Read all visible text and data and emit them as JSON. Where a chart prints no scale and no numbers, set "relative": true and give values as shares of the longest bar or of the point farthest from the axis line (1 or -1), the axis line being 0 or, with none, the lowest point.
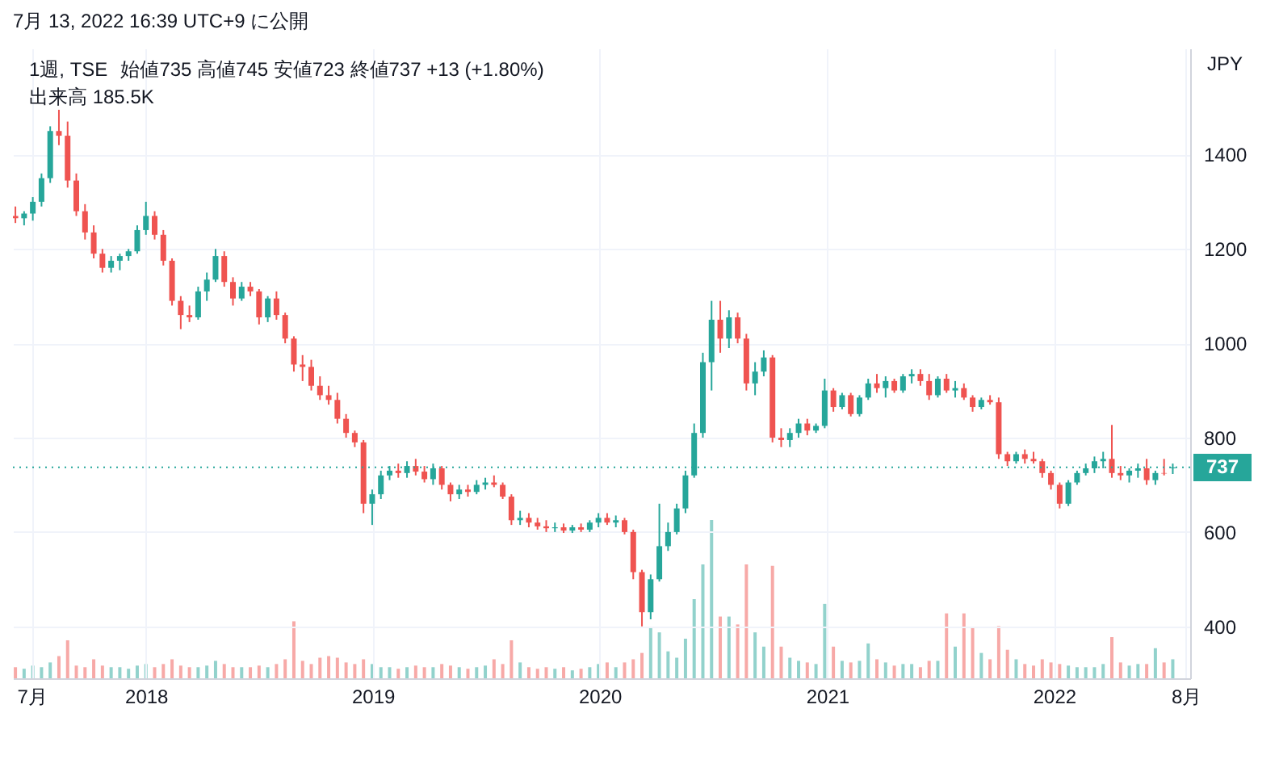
{
  "chart_data": [
    {
      "type": "candlestick",
      "title": "1週, TSE",
      "subtitle": "7月 13, 2022 16:39 UTC+9 に公開",
      "ylabel": "JPY",
      "annotations": [
        "始値735 高値745 安値723 終値737 +13 (+1.80%)",
        "出来高 185.5K"
      ],
      "xlim": [
        "2017-06-01",
        "2022-08-08"
      ],
      "xticks": [
        {
          "value": "2017-07-01",
          "label": "7月"
        },
        {
          "value": "2018-01-01",
          "label": "2018"
        },
        {
          "value": "2019-01-01",
          "label": "2019"
        },
        {
          "value": "2020-01-01",
          "label": "2020"
        },
        {
          "value": "2021-01-01",
          "label": "2021"
        },
        {
          "value": "2022-01-01",
          "label": "2022"
        },
        {
          "value": "2022-08-01",
          "label": "8月"
        }
      ],
      "ylim": [
        290,
        1625
      ],
      "yticks": [
        400,
        600,
        800,
        1000,
        1200,
        1400
      ],
      "grid": true,
      "ref_lines": [
        {
          "axis": "y",
          "value": 737,
          "label": "737",
          "color": "#26a69a",
          "line_style": "dotted"
        }
      ],
      "x": [
        "2017-06-05",
        "2017-06-19",
        "2017-07-03",
        "2017-07-17",
        "2017-07-31",
        "2017-08-14",
        "2017-08-28",
        "2017-09-11",
        "2017-09-25",
        "2017-10-09",
        "2017-10-23",
        "2017-11-06",
        "2017-11-20",
        "2017-12-04",
        "2017-12-18",
        "2018-01-01",
        "2018-01-15",
        "2018-01-29",
        "2018-02-12",
        "2018-02-26",
        "2018-03-12",
        "2018-03-26",
        "2018-04-09",
        "2018-04-23",
        "2018-05-07",
        "2018-05-21",
        "2018-06-04",
        "2018-06-18",
        "2018-07-02",
        "2018-07-16",
        "2018-07-30",
        "2018-08-13",
        "2018-08-27",
        "2018-09-10",
        "2018-09-24",
        "2018-10-08",
        "2018-10-22",
        "2018-11-05",
        "2018-11-19",
        "2018-12-03",
        "2018-12-17",
        "2018-12-31",
        "2019-01-14",
        "2019-01-28",
        "2019-02-11",
        "2019-02-25",
        "2019-03-11",
        "2019-03-25",
        "2019-04-08",
        "2019-04-22",
        "2019-05-06",
        "2019-05-20",
        "2019-06-03",
        "2019-06-17",
        "2019-07-01",
        "2019-07-15",
        "2019-07-29",
        "2019-08-12",
        "2019-08-26",
        "2019-09-09",
        "2019-09-23",
        "2019-10-07",
        "2019-10-21",
        "2019-11-04",
        "2019-11-18",
        "2019-12-02",
        "2019-12-16",
        "2019-12-30",
        "2020-01-13",
        "2020-01-27",
        "2020-02-10",
        "2020-02-24",
        "2020-03-09",
        "2020-03-23",
        "2020-04-06",
        "2020-04-20",
        "2020-05-04",
        "2020-05-18",
        "2020-06-01",
        "2020-06-15",
        "2020-06-29",
        "2020-07-13",
        "2020-07-27",
        "2020-08-10",
        "2020-08-24",
        "2020-09-07",
        "2020-09-21",
        "2020-10-05",
        "2020-10-19",
        "2020-11-02",
        "2020-11-16",
        "2020-11-30",
        "2020-12-14",
        "2020-12-28",
        "2021-01-11",
        "2021-01-25",
        "2021-02-08",
        "2021-02-22",
        "2021-03-08",
        "2021-03-22",
        "2021-04-05",
        "2021-04-19",
        "2021-05-03",
        "2021-05-17",
        "2021-05-31",
        "2021-06-14",
        "2021-06-28",
        "2021-07-12",
        "2021-07-26",
        "2021-08-09",
        "2021-08-23",
        "2021-09-06",
        "2021-09-20",
        "2021-10-04",
        "2021-10-18",
        "2021-11-01",
        "2021-11-15",
        "2021-11-29",
        "2021-12-13",
        "2021-12-27",
        "2022-01-10",
        "2022-01-24",
        "2022-02-07",
        "2022-02-21",
        "2022-03-07",
        "2022-03-21",
        "2022-04-04",
        "2022-04-18",
        "2022-05-02",
        "2022-05-16",
        "2022-05-30",
        "2022-06-13",
        "2022-06-27",
        "2022-07-11"
      ],
      "series": [
        {
          "ohlc": [
            [
              1270,
              1290,
              1255,
              1265
            ],
            [
              1265,
              1280,
              1250,
              1275
            ],
            [
              1275,
              1310,
              1260,
              1300
            ],
            [
              1300,
              1360,
              1290,
              1350
            ],
            [
              1350,
              1460,
              1340,
              1450
            ],
            [
              1450,
              1495,
              1420,
              1440
            ],
            [
              1440,
              1470,
              1330,
              1345
            ],
            [
              1345,
              1360,
              1270,
              1280
            ],
            [
              1280,
              1295,
              1220,
              1235
            ],
            [
              1235,
              1250,
              1180,
              1190
            ],
            [
              1190,
              1200,
              1150,
              1160
            ],
            [
              1160,
              1185,
              1150,
              1175
            ],
            [
              1175,
              1190,
              1155,
              1185
            ],
            [
              1185,
              1200,
              1175,
              1195
            ],
            [
              1195,
              1250,
              1190,
              1240
            ],
            [
              1240,
              1300,
              1230,
              1270
            ],
            [
              1270,
              1280,
              1220,
              1230
            ],
            [
              1230,
              1240,
              1165,
              1175
            ],
            [
              1175,
              1180,
              1080,
              1090
            ],
            [
              1090,
              1100,
              1030,
              1060
            ],
            [
              1060,
              1080,
              1045,
              1055
            ],
            [
              1055,
              1120,
              1050,
              1110
            ],
            [
              1110,
              1150,
              1090,
              1135
            ],
            [
              1135,
              1200,
              1130,
              1185
            ],
            [
              1185,
              1195,
              1120,
              1130
            ],
            [
              1130,
              1140,
              1080,
              1095
            ],
            [
              1095,
              1130,
              1090,
              1120
            ],
            [
              1120,
              1130,
              1100,
              1110
            ],
            [
              1110,
              1115,
              1040,
              1055
            ],
            [
              1055,
              1100,
              1045,
              1095
            ],
            [
              1095,
              1110,
              1050,
              1060
            ],
            [
              1060,
              1065,
              1000,
              1010
            ],
            [
              1010,
              1015,
              940,
              955
            ],
            [
              955,
              975,
              920,
              950
            ],
            [
              950,
              965,
              900,
              910
            ],
            [
              910,
              930,
              880,
              890
            ],
            [
              890,
              910,
              870,
              880
            ],
            [
              880,
              895,
              830,
              840
            ],
            [
              840,
              850,
              800,
              810
            ],
            [
              810,
              815,
              780,
              790
            ],
            [
              790,
              795,
              640,
              660
            ],
            [
              660,
              690,
              615,
              680
            ],
            [
              680,
              730,
              670,
              720
            ],
            [
              720,
              740,
              710,
              730
            ],
            [
              730,
              745,
              715,
              725
            ],
            [
              725,
              750,
              715,
              740
            ],
            [
              740,
              755,
              720,
              728
            ],
            [
              728,
              740,
              705,
              712
            ],
            [
              712,
              745,
              700,
              735
            ],
            [
              735,
              740,
              690,
              700
            ],
            [
              700,
              705,
              665,
              680
            ],
            [
              680,
              700,
              670,
              690
            ],
            [
              690,
              700,
              675,
              685
            ],
            [
              685,
              710,
              680,
              700
            ],
            [
              700,
              715,
              690,
              705
            ],
            [
              705,
              720,
              695,
              700
            ],
            [
              700,
              705,
              670,
              675
            ],
            [
              675,
              680,
              615,
              625
            ],
            [
              625,
              645,
              615,
              630
            ],
            [
              630,
              640,
              610,
              620
            ],
            [
              620,
              630,
              605,
              612
            ],
            [
              612,
              625,
              600,
              608
            ],
            [
              608,
              620,
              600,
              610
            ],
            [
              610,
              618,
              598,
              603
            ],
            [
              603,
              615,
              598,
              610
            ],
            [
              610,
              618,
              600,
              605
            ],
            [
              605,
              625,
              600,
              620
            ],
            [
              620,
              640,
              610,
              630
            ],
            [
              630,
              640,
              615,
              620
            ],
            [
              620,
              635,
              610,
              625
            ],
            [
              625,
              630,
              595,
              600
            ],
            [
              600,
              605,
              500,
              515
            ],
            [
              515,
              520,
              400,
              430
            ],
            [
              430,
              510,
              415,
              500
            ],
            [
              500,
              660,
              495,
              570
            ],
            [
              570,
              620,
              560,
              600
            ],
            [
              600,
              660,
              595,
              650
            ],
            [
              650,
              730,
              640,
              720
            ],
            [
              720,
              830,
              715,
              810
            ],
            [
              810,
              980,
              800,
              960
            ],
            [
              960,
              1090,
              900,
              1050
            ],
            [
              1050,
              1090,
              980,
              1010
            ],
            [
              1010,
              1070,
              990,
              1055
            ],
            [
              1055,
              1065,
              1000,
              1010
            ],
            [
              1010,
              1020,
              900,
              915
            ],
            [
              915,
              960,
              890,
              940
            ],
            [
              940,
              985,
              930,
              970
            ],
            [
              970,
              975,
              790,
              800
            ],
            [
              800,
              820,
              780,
              795
            ],
            [
              795,
              820,
              780,
              810
            ],
            [
              810,
              840,
              800,
              830
            ],
            [
              830,
              840,
              805,
              815
            ],
            [
              815,
              830,
              810,
              825
            ],
            [
              825,
              925,
              820,
              900
            ],
            [
              900,
              905,
              855,
              865
            ],
            [
              865,
              895,
              860,
              890
            ],
            [
              890,
              895,
              845,
              850
            ],
            [
              850,
              890,
              845,
              885
            ],
            [
              885,
              925,
              880,
              915
            ],
            [
              915,
              935,
              895,
              905
            ],
            [
              905,
              930,
              885,
              920
            ],
            [
              920,
              925,
              895,
              900
            ],
            [
              900,
              935,
              895,
              930
            ],
            [
              930,
              945,
              915,
              935
            ],
            [
              935,
              945,
              910,
              920
            ],
            [
              920,
              935,
              880,
              890
            ],
            [
              890,
              930,
              885,
              925
            ],
            [
              925,
              935,
              895,
              900
            ],
            [
              900,
              920,
              885,
              905
            ],
            [
              905,
              915,
              880,
              885
            ],
            [
              885,
              890,
              855,
              865
            ],
            [
              865,
              885,
              860,
              880
            ],
            [
              880,
              890,
              870,
              875
            ],
            [
              875,
              885,
              755,
              765
            ],
            [
              765,
              770,
              740,
              750
            ],
            [
              750,
              770,
              745,
              765
            ],
            [
              765,
              775,
              745,
              755
            ],
            [
              755,
              770,
              745,
              750
            ],
            [
              750,
              755,
              715,
              725
            ],
            [
              725,
              730,
              690,
              700
            ],
            [
              700,
              705,
              650,
              660
            ],
            [
              660,
              710,
              655,
              705
            ],
            [
              705,
              730,
              700,
              725
            ],
            [
              725,
              745,
              720,
              735
            ],
            [
              735,
              760,
              725,
              750
            ],
            [
              750,
              770,
              735,
              755
            ],
            [
              755,
              827,
              715,
              725
            ],
            [
              725,
              740,
              710,
              720
            ],
            [
              720,
              735,
              705,
              730
            ],
            [
              730,
              745,
              715,
              735
            ],
            [
              735,
              755,
              700,
              710
            ],
            [
              710,
              730,
              700,
              725
            ],
            [
              725,
              755,
              720,
              724
            ],
            [
              735,
              745,
              723,
              737
            ]
          ],
          "colors": [
            "#ef5350",
            "#26a69a",
            "#26a69a",
            "#26a69a",
            "#26a69a",
            "#ef5350",
            "#ef5350",
            "#ef5350",
            "#ef5350",
            "#ef5350",
            "#ef5350",
            "#26a69a",
            "#26a69a",
            "#26a69a",
            "#26a69a",
            "#26a69a",
            "#ef5350",
            "#ef5350",
            "#ef5350",
            "#ef5350",
            "#ef5350",
            "#26a69a",
            "#26a69a",
            "#26a69a",
            "#ef5350",
            "#ef5350",
            "#26a69a",
            "#ef5350",
            "#ef5350",
            "#26a69a",
            "#ef5350",
            "#ef5350",
            "#ef5350",
            "#ef5350",
            "#ef5350",
            "#ef5350",
            "#ef5350",
            "#ef5350",
            "#ef5350",
            "#ef5350",
            "#ef5350",
            "#26a69a",
            "#26a69a",
            "#26a69a",
            "#ef5350",
            "#26a69a",
            "#ef5350",
            "#ef5350",
            "#26a69a",
            "#ef5350",
            "#ef5350",
            "#26a69a",
            "#ef5350",
            "#26a69a",
            "#26a69a",
            "#ef5350",
            "#ef5350",
            "#ef5350",
            "#26a69a",
            "#ef5350",
            "#ef5350",
            "#ef5350",
            "#26a69a",
            "#ef5350",
            "#26a69a",
            "#ef5350",
            "#26a69a",
            "#26a69a",
            "#ef5350",
            "#26a69a",
            "#ef5350",
            "#ef5350",
            "#ef5350",
            "#26a69a",
            "#26a69a",
            "#26a69a",
            "#26a69a",
            "#26a69a",
            "#26a69a",
            "#26a69a",
            "#26a69a",
            "#ef5350",
            "#26a69a",
            "#ef5350",
            "#ef5350",
            "#26a69a",
            "#26a69a",
            "#ef5350",
            "#ef5350",
            "#26a69a",
            "#26a69a",
            "#ef5350",
            "#26a69a",
            "#26a69a",
            "#ef5350",
            "#26a69a",
            "#ef5350",
            "#26a69a",
            "#26a69a",
            "#ef5350",
            "#26a69a",
            "#ef5350",
            "#26a69a",
            "#26a69a",
            "#ef5350",
            "#ef5350",
            "#26a69a",
            "#ef5350",
            "#26a69a",
            "#ef5350",
            "#ef5350",
            "#26a69a",
            "#ef5350",
            "#ef5350",
            "#ef5350",
            "#26a69a",
            "#ef5350",
            "#ef5350",
            "#ef5350",
            "#ef5350",
            "#ef5350",
            "#26a69a",
            "#26a69a",
            "#26a69a",
            "#26a69a",
            "#26a69a",
            "#ef5350",
            "#ef5350",
            "#26a69a",
            "#26a69a",
            "#ef5350",
            "#26a69a",
            "#ef5350",
            "#26a69a"
          ]
        }
      ]
    },
    {
      "type": "bar",
      "relative": true,
      "xlim": [
        "2017-06-01",
        "2022-08-08"
      ],
      "x": [
        "2017-06-05",
        "2017-06-19",
        "2017-07-03",
        "2017-07-17",
        "2017-07-31",
        "2017-08-14",
        "2017-08-28",
        "2017-09-11",
        "2017-09-25",
        "2017-10-09",
        "2017-10-23",
        "2017-11-06",
        "2017-11-20",
        "2017-12-04",
        "2017-12-18",
        "2018-01-01",
        "2018-01-15",
        "2018-01-29",
        "2018-02-12",
        "2018-02-26",
        "2018-03-12",
        "2018-03-26",
        "2018-04-09",
        "2018-04-23",
        "2018-05-07",
        "2018-05-21",
        "2018-06-04",
        "2018-06-18",
        "2018-07-02",
        "2018-07-16",
        "2018-07-30",
        "2018-08-13",
        "2018-08-27",
        "2018-09-10",
        "2018-09-24",
        "2018-10-08",
        "2018-10-22",
        "2018-11-05",
        "2018-11-19",
        "2018-12-03",
        "2018-12-17",
        "2018-12-31",
        "2019-01-14",
        "2019-01-28",
        "2019-02-11",
        "2019-02-25",
        "2019-03-11",
        "2019-03-25",
        "2019-04-08",
        "2019-04-22",
        "2019-05-06",
        "2019-05-20",
        "2019-06-03",
        "2019-06-17",
        "2019-07-01",
        "2019-07-15",
        "2019-07-29",
        "2019-08-12",
        "2019-08-26",
        "2019-09-09",
        "2019-09-23",
        "2019-10-07",
        "2019-10-21",
        "2019-11-04",
        "2019-11-18",
        "2019-12-02",
        "2019-12-16",
        "2019-12-30",
        "2020-01-13",
        "2020-01-27",
        "2020-02-10",
        "2020-02-24",
        "2020-03-09",
        "2020-03-23",
        "2020-04-06",
        "2020-04-20",
        "2020-05-04",
        "2020-05-18",
        "2020-06-01",
        "2020-06-15",
        "2020-06-29",
        "2020-07-13",
        "2020-07-27",
        "2020-08-10",
        "2020-08-24",
        "2020-09-07",
        "2020-09-21",
        "2020-10-05",
        "2020-10-19",
        "2020-11-02",
        "2020-11-16",
        "2020-11-30",
        "2020-12-14",
        "2020-12-28",
        "2021-01-11",
        "2021-01-25",
        "2021-02-08",
        "2021-02-22",
        "2021-03-08",
        "2021-03-22",
        "2021-04-05",
        "2021-04-19",
        "2021-05-03",
        "2021-05-17",
        "2021-05-31",
        "2021-06-14",
        "2021-06-28",
        "2021-07-12",
        "2021-07-26",
        "2021-08-09",
        "2021-08-23",
        "2021-09-06",
        "2021-09-20",
        "2021-10-04",
        "2021-10-18",
        "2021-11-01",
        "2021-11-15",
        "2021-11-29",
        "2021-12-13",
        "2021-12-27",
        "2022-01-10",
        "2022-01-24",
        "2022-02-07",
        "2022-02-21",
        "2022-03-07",
        "2022-03-21",
        "2022-04-04",
        "2022-04-18",
        "2022-05-02",
        "2022-05-16",
        "2022-05-30",
        "2022-06-13",
        "2022-06-27",
        "2022-07-11"
      ],
      "series": [
        {
          "values": [
            0.07,
            0.06,
            0.08,
            0.07,
            0.1,
            0.14,
            0.24,
            0.08,
            0.07,
            0.12,
            0.08,
            0.07,
            0.07,
            0.06,
            0.08,
            0.09,
            0.07,
            0.09,
            0.12,
            0.08,
            0.07,
            0.07,
            0.08,
            0.11,
            0.09,
            0.07,
            0.07,
            0.07,
            0.08,
            0.07,
            0.09,
            0.12,
            0.36,
            0.11,
            0.09,
            0.13,
            0.14,
            0.13,
            0.1,
            0.09,
            0.12,
            0.09,
            0.07,
            0.07,
            0.06,
            0.07,
            0.08,
            0.07,
            0.07,
            0.09,
            0.08,
            0.07,
            0.06,
            0.07,
            0.08,
            0.12,
            0.09,
            0.24,
            0.1,
            0.07,
            0.06,
            0.07,
            0.06,
            0.07,
            0.05,
            0.06,
            0.07,
            0.09,
            0.1,
            0.07,
            0.1,
            0.12,
            0.16,
            0.32,
            0.29,
            0.17,
            0.13,
            0.25,
            0.5,
            0.72,
            1,
            0.39,
            0.39,
            0.34,
            0.72,
            0.29,
            0.2,
            0.71,
            0.2,
            0.13,
            0.11,
            0.1,
            0.09,
            0.47,
            0.2,
            0.11,
            0.1,
            0.11,
            0.22,
            0.12,
            0.1,
            0.08,
            0.09,
            0.09,
            0.07,
            0.11,
            0.11,
            0.41,
            0.2,
            0.41,
            0.32,
            0.16,
            0.12,
            0.33,
            0.18,
            0.12,
            0.09,
            0.08,
            0.12,
            0.1,
            0.09,
            0.08,
            0.07,
            0.07,
            0.07,
            0.09,
            0.26,
            0.1,
            0.08,
            0.09,
            0.09,
            0.19,
            0.1,
            0.12
          ],
          "colors": [
            "#f7a9a7",
            "#92d2cc",
            "#92d2cc",
            "#92d2cc",
            "#92d2cc",
            "#f7a9a7",
            "#f7a9a7",
            "#f7a9a7",
            "#f7a9a7",
            "#f7a9a7",
            "#f7a9a7",
            "#92d2cc",
            "#92d2cc",
            "#92d2cc",
            "#92d2cc",
            "#92d2cc",
            "#f7a9a7",
            "#f7a9a7",
            "#f7a9a7",
            "#f7a9a7",
            "#f7a9a7",
            "#92d2cc",
            "#92d2cc",
            "#92d2cc",
            "#f7a9a7",
            "#f7a9a7",
            "#92d2cc",
            "#f7a9a7",
            "#f7a9a7",
            "#92d2cc",
            "#f7a9a7",
            "#f7a9a7",
            "#f7a9a7",
            "#f7a9a7",
            "#f7a9a7",
            "#f7a9a7",
            "#f7a9a7",
            "#f7a9a7",
            "#f7a9a7",
            "#f7a9a7",
            "#f7a9a7",
            "#92d2cc",
            "#92d2cc",
            "#92d2cc",
            "#f7a9a7",
            "#92d2cc",
            "#f7a9a7",
            "#f7a9a7",
            "#92d2cc",
            "#f7a9a7",
            "#f7a9a7",
            "#92d2cc",
            "#f7a9a7",
            "#92d2cc",
            "#92d2cc",
            "#f7a9a7",
            "#f7a9a7",
            "#f7a9a7",
            "#92d2cc",
            "#f7a9a7",
            "#f7a9a7",
            "#f7a9a7",
            "#92d2cc",
            "#f7a9a7",
            "#92d2cc",
            "#f7a9a7",
            "#92d2cc",
            "#92d2cc",
            "#f7a9a7",
            "#92d2cc",
            "#f7a9a7",
            "#f7a9a7",
            "#f7a9a7",
            "#92d2cc",
            "#92d2cc",
            "#92d2cc",
            "#92d2cc",
            "#92d2cc",
            "#92d2cc",
            "#92d2cc",
            "#92d2cc",
            "#f7a9a7",
            "#92d2cc",
            "#f7a9a7",
            "#f7a9a7",
            "#92d2cc",
            "#92d2cc",
            "#f7a9a7",
            "#f7a9a7",
            "#92d2cc",
            "#92d2cc",
            "#f7a9a7",
            "#92d2cc",
            "#92d2cc",
            "#f7a9a7",
            "#92d2cc",
            "#f7a9a7",
            "#92d2cc",
            "#92d2cc",
            "#f7a9a7",
            "#92d2cc",
            "#f7a9a7",
            "#92d2cc",
            "#92d2cc",
            "#f7a9a7",
            "#f7a9a7",
            "#92d2cc",
            "#f7a9a7",
            "#92d2cc",
            "#f7a9a7",
            "#f7a9a7",
            "#92d2cc",
            "#f7a9a7",
            "#f7a9a7",
            "#f7a9a7",
            "#92d2cc",
            "#f7a9a7",
            "#f7a9a7",
            "#f7a9a7",
            "#f7a9a7",
            "#f7a9a7",
            "#92d2cc",
            "#92d2cc",
            "#92d2cc",
            "#92d2cc",
            "#92d2cc",
            "#f7a9a7",
            "#f7a9a7",
            "#92d2cc",
            "#92d2cc",
            "#f7a9a7",
            "#92d2cc",
            "#f7a9a7",
            "#92d2cc"
          ]
        }
      ]
    }
  ]
}
